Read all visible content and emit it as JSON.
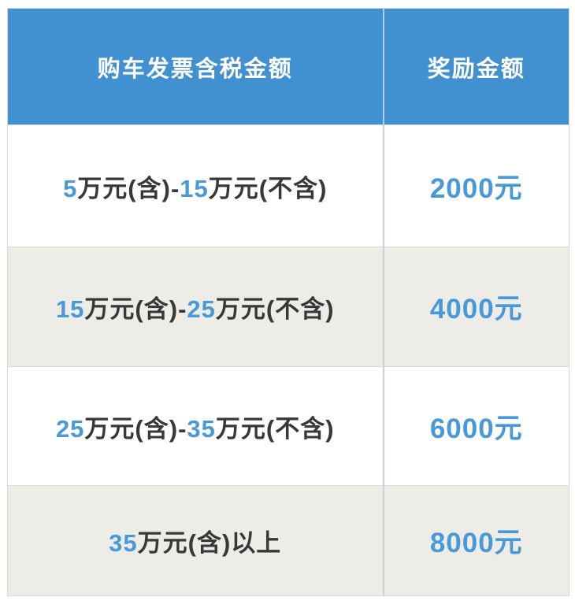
{
  "table": {
    "header": {
      "col1": "购车发票含税金额",
      "col2": "奖励金额"
    },
    "rows": [
      {
        "p1": "5",
        "p2": "万元(含)-",
        "p3": "15",
        "p4": "万元(不含)",
        "reward": "2000元"
      },
      {
        "p1": "15",
        "p2": "万元(含)-",
        "p3": "25",
        "p4": "万元(不含)",
        "reward": "4000元"
      },
      {
        "p1": "25",
        "p2": "万元(含)-",
        "p3": "35",
        "p4": "万元(不含)",
        "reward": "6000元"
      },
      {
        "p1": "35",
        "p2": "万元(含)以上",
        "p3": "",
        "p4": "",
        "reward": "8000元"
      }
    ],
    "colors": {
      "header_bg": "#4191D1",
      "accent_blue": "#4899DA",
      "text_dark": "#383838",
      "row_alt_bg": "#EDECE7",
      "divider": "#C6D0D8"
    }
  },
  "chart_data": {
    "type": "table",
    "title": "",
    "columns": [
      "购车发票含税金额",
      "奖励金额"
    ],
    "rows": [
      [
        "5万元(含)-15万元(不含)",
        "2000元"
      ],
      [
        "15万元(含)-25万元(不含)",
        "4000元"
      ],
      [
        "25万元(含)-35万元(不含)",
        "6000元"
      ],
      [
        "35万元(含)以上",
        "8000元"
      ]
    ]
  }
}
